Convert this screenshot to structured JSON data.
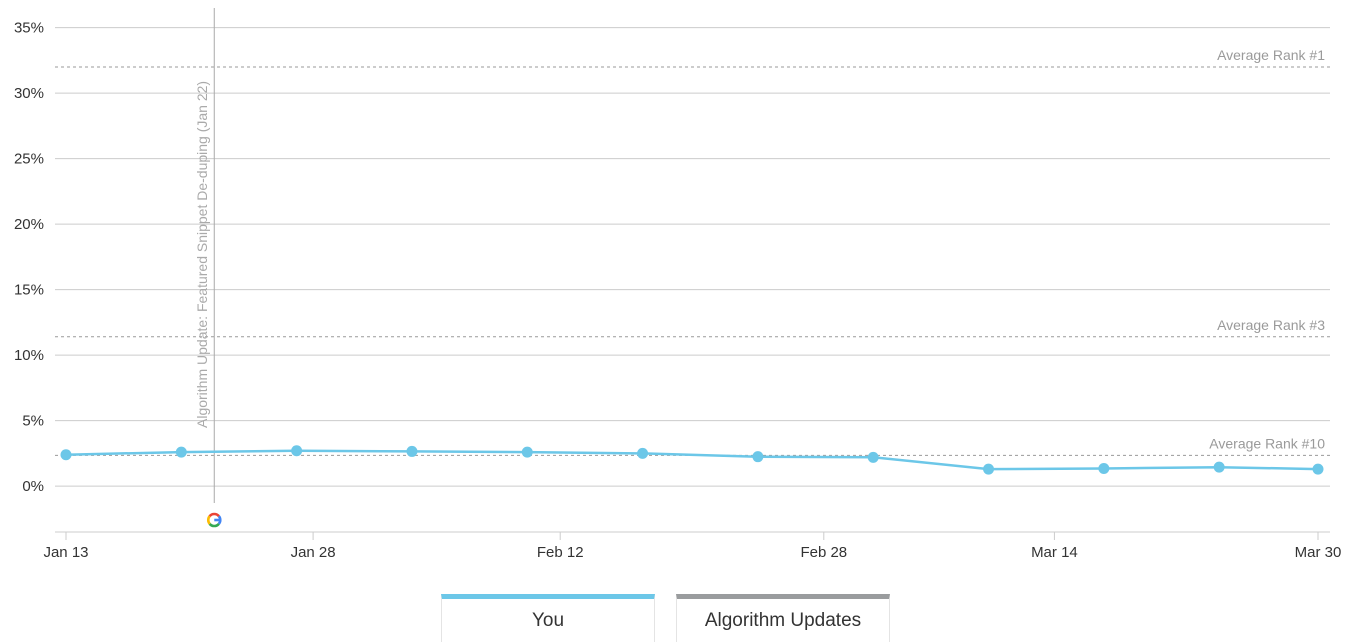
{
  "chart_data": {
    "type": "line",
    "title": "",
    "xlabel": "",
    "ylabel": "",
    "ylim": [
      -3.5,
      36.5
    ],
    "y_ticks": [
      0,
      5,
      10,
      15,
      20,
      25,
      30,
      35
    ],
    "y_tick_labels": [
      "0%",
      "5%",
      "10%",
      "15%",
      "20%",
      "25%",
      "30%",
      "35%"
    ],
    "x_ticks": [
      "2025-01-13",
      "2025-01-28",
      "2025-02-12",
      "2025-02-28",
      "2025-03-14",
      "2025-03-30"
    ],
    "x_tick_labels": [
      "Jan 13",
      "Jan 28",
      "Feb 12",
      "Feb 28",
      "Mar 14",
      "Mar 30"
    ],
    "grid": true,
    "series": [
      {
        "name": "You",
        "color": "#6cc7e8",
        "x": [
          "2025-01-13",
          "2025-01-20",
          "2025-01-27",
          "2025-02-03",
          "2025-02-10",
          "2025-02-17",
          "2025-02-24",
          "2025-03-03",
          "2025-03-10",
          "2025-03-17",
          "2025-03-24",
          "2025-03-30"
        ],
        "values": [
          2.4,
          2.6,
          2.7,
          2.65,
          2.6,
          2.5,
          2.25,
          2.2,
          1.3,
          1.35,
          1.45,
          1.3
        ]
      }
    ],
    "reference_lines": [
      {
        "label": "Average Rank #1",
        "value": 32.0
      },
      {
        "label": "Average Rank #3",
        "value": 11.4
      },
      {
        "label": "Average Rank #10",
        "value": 2.35
      }
    ],
    "annotations": [
      {
        "label": "Algorithm Update: Featured Snippet De-duping (Jan 22)",
        "date": "2025-01-22",
        "icon": "google-g-icon"
      }
    ]
  },
  "legend": {
    "items": [
      {
        "label": "You",
        "color": "#6cc7e8"
      },
      {
        "label": "Algorithm Updates",
        "color": "#9a9c9e"
      }
    ]
  }
}
